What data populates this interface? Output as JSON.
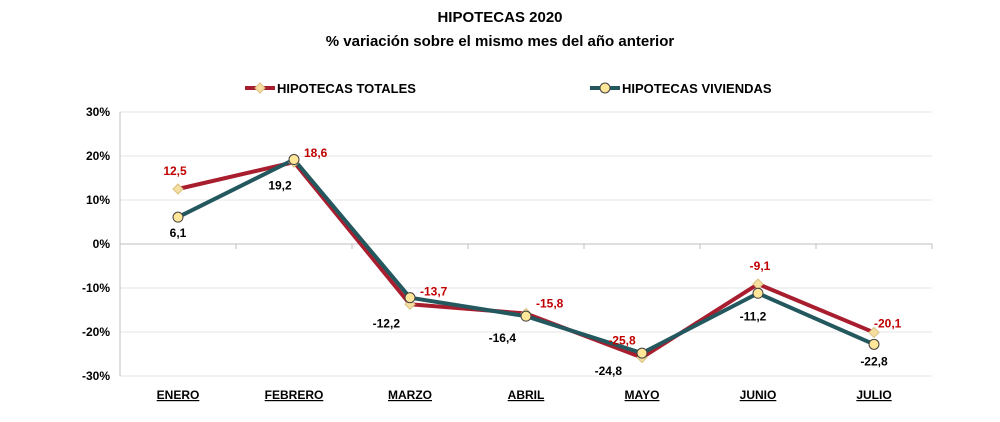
{
  "chart_data": {
    "type": "line",
    "title": "HIPOTECAS 2020",
    "subtitle": "% variación sobre el mismo mes del año anterior",
    "xlabel": "",
    "ylabel": "",
    "categories": [
      "ENERO",
      "FEBRERO",
      "MARZO",
      "ABRIL",
      "MAYO",
      "JUNIO",
      "JULIO"
    ],
    "ylim": [
      -30,
      30
    ],
    "yticks": [
      30,
      20,
      10,
      0,
      -10,
      -20,
      -30
    ],
    "ytick_labels": [
      "30%",
      "20%",
      "10%",
      "0%",
      "-10%",
      "-20%",
      "-30%"
    ],
    "grid": true,
    "legend_position": "top",
    "series": [
      {
        "name": "HIPOTECAS TOTALES",
        "color": "#A91E2E",
        "marker": "diamond",
        "label_color": "#C00000",
        "values": [
          12.5,
          18.6,
          -13.7,
          -15.8,
          -25.8,
          -9.1,
          -20.1
        ],
        "labels": [
          "12,5",
          "18,6",
          "-13,7",
          "-15,8",
          "-25,8",
          "-9,1",
          "-20,1"
        ]
      },
      {
        "name": "HIPOTECAS VIVIENDAS",
        "color": "#23585F",
        "marker": "circle",
        "label_color": "#000000",
        "values": [
          6.1,
          19.2,
          -12.2,
          -16.4,
          -24.8,
          -11.2,
          -22.8
        ],
        "labels": [
          "6,1",
          "19,2",
          "-12,2",
          "-16,4",
          "-24,8",
          "-11,2",
          "-22,8"
        ]
      }
    ]
  }
}
